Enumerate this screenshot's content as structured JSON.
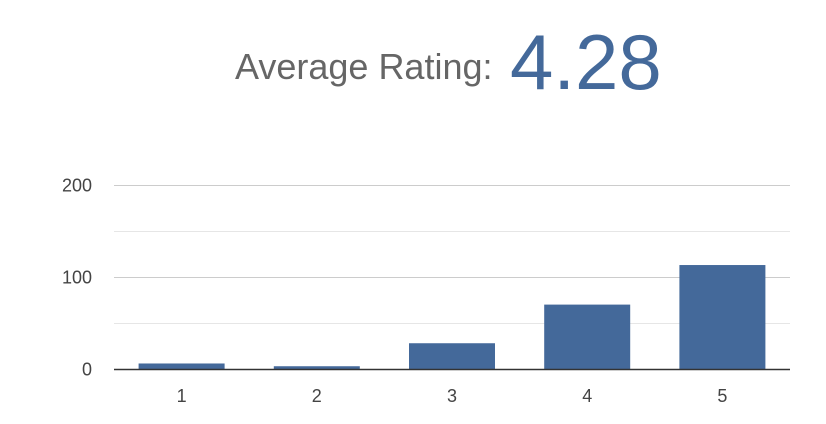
{
  "header": {
    "label": "Average Rating:",
    "value": "4.28"
  },
  "chart_data": {
    "type": "bar",
    "categories": [
      "1",
      "2",
      "3",
      "4",
      "5"
    ],
    "values": [
      6,
      3,
      28,
      70,
      113
    ],
    "ylim": [
      0,
      200
    ],
    "yticks": [
      0,
      100,
      200
    ],
    "grid": true,
    "bar_color": "#44699a",
    "grid_color": "#cccccc",
    "minor_grid_color": "#e6e6e6",
    "axis_color": "#333333",
    "title": "",
    "xlabel": "",
    "ylabel": ""
  }
}
